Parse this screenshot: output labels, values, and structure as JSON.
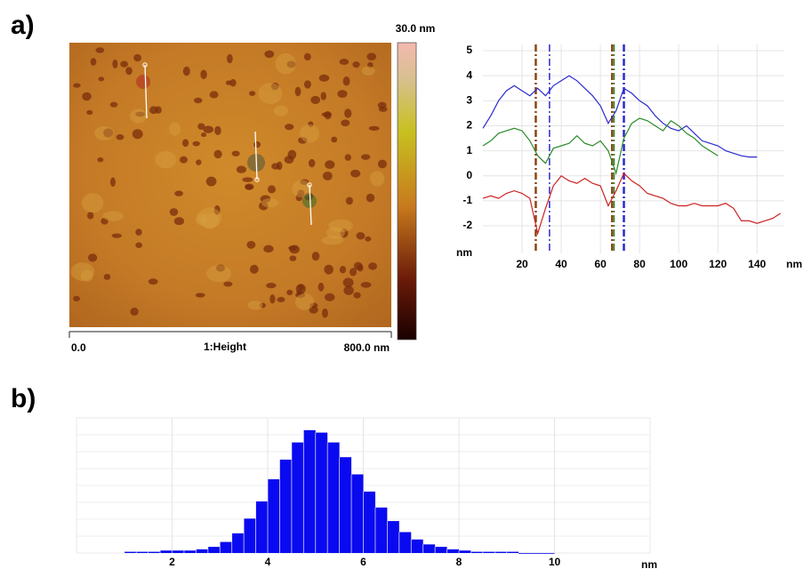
{
  "panel_labels": [
    "a)",
    "b)"
  ],
  "chart_data": [
    {
      "type": "image",
      "colorbar_label": "30.0 nm",
      "x_start_label": "0.0",
      "x_end_label": "800.0 nm",
      "caption": "1:Height"
    },
    {
      "type": "line",
      "x_label": "nm",
      "y_label": "nm",
      "x": [
        0,
        4,
        8,
        12,
        16,
        20,
        24,
        28,
        32,
        36,
        40,
        44,
        48,
        52,
        56,
        60,
        64,
        68,
        72,
        76,
        80,
        84,
        88,
        92,
        96,
        100,
        104,
        108,
        112,
        116,
        120,
        124,
        128,
        132,
        136,
        140,
        144,
        148,
        152
      ],
      "series": [
        {
          "color": "#2a2ad0",
          "values": [
            1.9,
            2.4,
            3.0,
            3.4,
            3.6,
            3.4,
            3.2,
            3.5,
            3.2,
            3.6,
            3.8,
            4.0,
            3.8,
            3.5,
            3.2,
            2.8,
            2.1,
            2.6,
            3.5,
            3.3,
            3.0,
            2.8,
            2.4,
            2.1,
            1.9,
            1.8,
            2.0,
            1.7,
            1.4,
            1.3,
            1.2,
            1.0,
            0.9,
            0.8,
            0.75,
            0.75,
            null,
            null,
            null
          ]
        },
        {
          "color": "#2a8a2a",
          "values": [
            1.2,
            1.4,
            1.7,
            1.8,
            1.9,
            1.8,
            1.4,
            0.8,
            0.5,
            1.1,
            1.2,
            1.3,
            1.6,
            1.3,
            1.2,
            1.4,
            1.0,
            0.1,
            1.5,
            2.1,
            2.3,
            2.2,
            2.0,
            1.8,
            2.2,
            2.0,
            1.7,
            1.5,
            1.2,
            1.0,
            0.8,
            null,
            null,
            null,
            null,
            null,
            null,
            null,
            null
          ]
        },
        {
          "color": "#cc2222",
          "values": [
            -0.9,
            -0.8,
            -0.9,
            -0.7,
            -0.6,
            -0.7,
            -0.9,
            -2.3,
            -1.3,
            -0.4,
            0.0,
            -0.2,
            -0.3,
            -0.1,
            -0.3,
            -0.4,
            -1.2,
            -0.6,
            0.1,
            -0.2,
            -0.4,
            -0.7,
            -0.8,
            -0.9,
            -1.1,
            -1.2,
            -1.2,
            -1.1,
            -1.2,
            -1.2,
            -1.2,
            -1.1,
            -1.3,
            -1.8,
            -1.8,
            -1.9,
            -1.8,
            -1.7,
            -1.5
          ]
        }
      ],
      "cursors": [
        {
          "x": 27,
          "color": "#8b4513"
        },
        {
          "x": 34,
          "color": "#2a2ad0"
        },
        {
          "x": 66,
          "color": "#8b4513"
        },
        {
          "x": 67,
          "color": "#2a8a2a"
        },
        {
          "x": 72,
          "color": "#2a2ad0"
        }
      ],
      "xlim": [
        0,
        154
      ],
      "ylim": [
        -3.1,
        5.25
      ],
      "xticks": [
        20,
        40,
        60,
        80,
        100,
        120,
        140
      ],
      "yticks": [
        -2,
        -1,
        0,
        1,
        2,
        3,
        4,
        5
      ],
      "grid": true
    },
    {
      "type": "histogram",
      "x_label": "nm",
      "color": "#0a0af0",
      "bins": [
        1,
        1.25,
        1.5,
        1.75,
        2,
        2.25,
        2.5,
        2.75,
        3,
        3.25,
        3.5,
        3.75,
        4,
        4.25,
        4.5,
        4.75,
        5,
        5.25,
        5.5,
        5.75,
        6,
        6.25,
        6.5,
        6.75,
        7,
        7.25,
        7.5,
        7.75,
        8,
        8.25,
        8.5,
        8.75,
        9,
        9.25,
        9.5,
        9.75,
        10
      ],
      "counts": [
        1,
        1,
        1,
        2,
        2,
        2,
        3,
        5,
        9,
        16,
        28,
        42,
        60,
        76,
        90,
        100,
        98,
        90,
        78,
        64,
        50,
        37,
        26,
        17,
        11,
        7,
        5,
        3,
        2,
        1,
        1,
        1,
        1,
        0,
        0,
        0
      ],
      "xlim": [
        0,
        12
      ],
      "ylim": [
        0,
        110
      ],
      "xticks": [
        2,
        4,
        6,
        8,
        10
      ],
      "grid": true
    }
  ]
}
